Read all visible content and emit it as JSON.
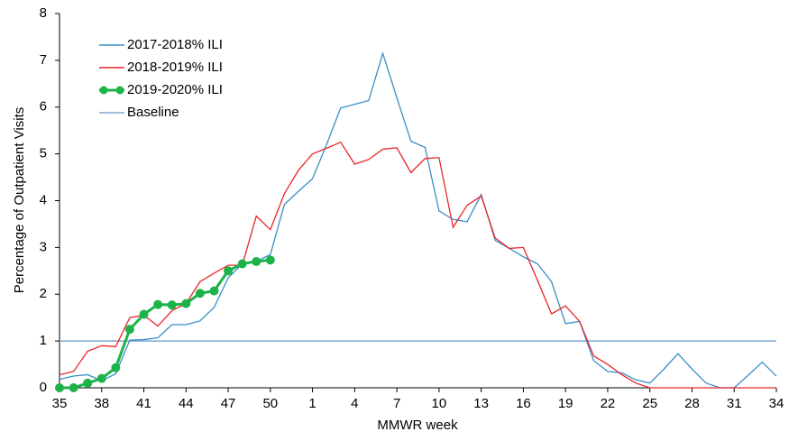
{
  "chart_data": {
    "type": "line",
    "ylabel": "Percentage of Outpatient Visits",
    "xlabel": "MMWR week",
    "categories": [
      "35",
      null,
      null,
      "38",
      null,
      null,
      "41",
      null,
      null,
      "44",
      null,
      null,
      "47",
      null,
      null,
      "50",
      null,
      null,
      "1",
      null,
      null,
      "4",
      null,
      null,
      "7",
      null,
      null,
      "10",
      null,
      null,
      "13",
      null,
      null,
      "16",
      null,
      null,
      "19",
      null,
      null,
      "22",
      null,
      null,
      "25",
      null,
      null,
      "28",
      null,
      null,
      "31",
      null,
      null,
      "34"
    ],
    "ylim": [
      0,
      8
    ],
    "yticks": [
      0,
      1,
      2,
      3,
      4,
      5,
      6,
      7,
      8
    ],
    "series": [
      {
        "name": "2017-2018% ILI",
        "color": "#3a8fc8",
        "values": [
          0.18,
          0.25,
          0.28,
          0.15,
          0.3,
          1.02,
          1.03,
          1.07,
          1.35,
          1.35,
          1.43,
          1.72,
          2.35,
          2.65,
          2.7,
          2.85,
          3.92,
          4.2,
          4.47,
          5.2,
          5.98,
          6.06,
          6.14,
          7.15,
          6.2,
          5.27,
          5.14,
          3.78,
          3.6,
          3.55,
          4.13,
          3.15,
          2.98,
          2.8,
          2.65,
          2.27,
          1.37,
          1.42,
          0.58,
          0.35,
          0.32,
          0.17,
          0.1,
          0.4,
          0.73,
          0.4,
          0.1,
          0,
          0,
          0.27,
          0.55,
          0.25
        ]
      },
      {
        "name": "2018-2019% ILI",
        "color": "#e8262a",
        "values": [
          0.28,
          0.35,
          0.78,
          0.9,
          0.88,
          1.5,
          1.55,
          1.32,
          1.65,
          1.8,
          2.27,
          2.45,
          2.62,
          2.62,
          3.67,
          3.38,
          4.15,
          4.65,
          5.0,
          5.12,
          5.25,
          4.78,
          4.88,
          5.1,
          5.13,
          4.6,
          4.9,
          4.92,
          3.43,
          3.9,
          4.1,
          3.2,
          2.98,
          3.0,
          2.3,
          1.58,
          1.75,
          1.42,
          0.68,
          0.5,
          0.28,
          0.1,
          0,
          0,
          0,
          0,
          0,
          0,
          0,
          0,
          0,
          0
        ]
      },
      {
        "name": "2019-2020% ILI",
        "color": "#1db34a",
        "markers": true,
        "values": [
          0,
          0,
          0.1,
          0.2,
          0.43,
          1.25,
          1.57,
          1.78,
          1.77,
          1.8,
          2.02,
          2.07,
          2.5,
          2.65,
          2.7,
          2.73,
          null,
          null,
          null,
          null,
          null,
          null,
          null,
          null,
          null,
          null,
          null,
          null,
          null,
          null,
          null,
          null,
          null,
          null,
          null,
          null,
          null,
          null,
          null,
          null,
          null,
          null,
          null,
          null,
          null,
          null,
          null,
          null,
          null,
          null,
          null,
          null
        ]
      }
    ],
    "hlines": [
      {
        "name": "Baseline",
        "value": 1,
        "color": "#7fa6cf"
      }
    ]
  }
}
